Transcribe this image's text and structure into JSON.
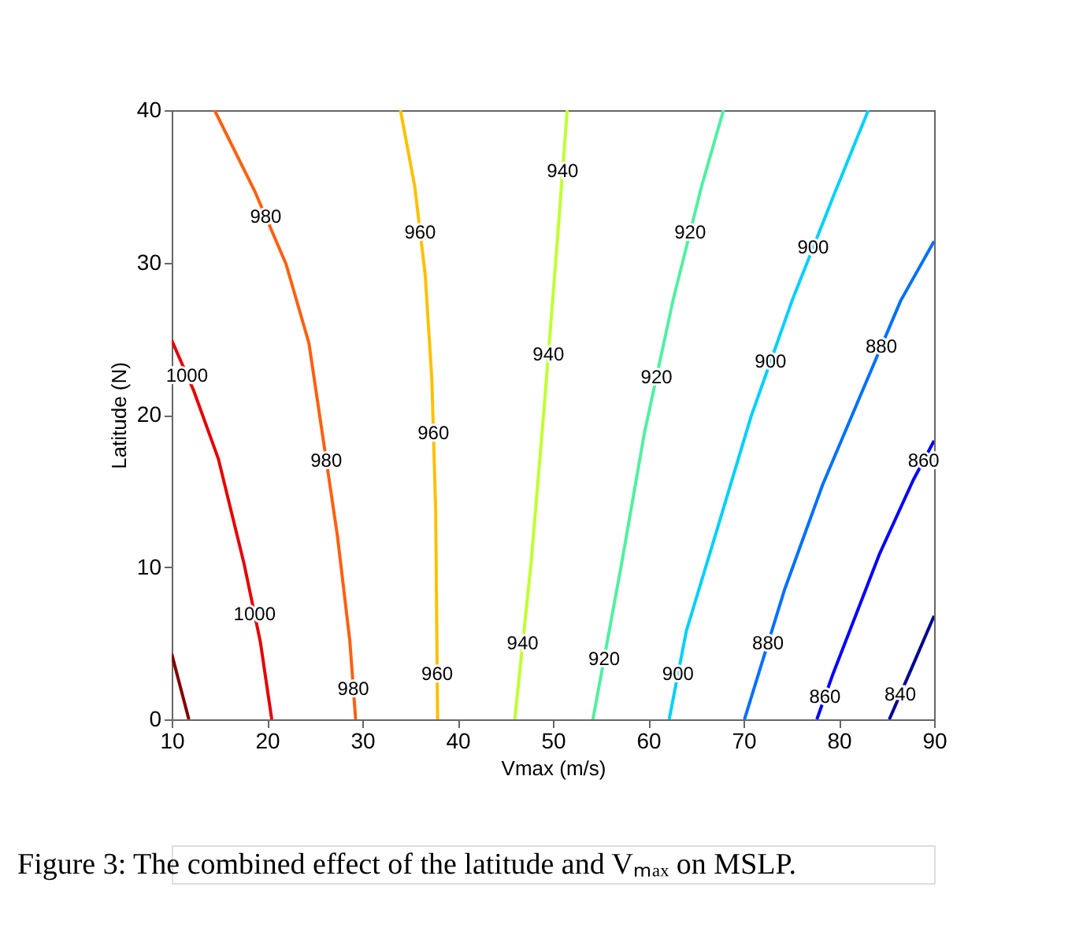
{
  "chart_data": {
    "type": "line",
    "xlabel": "Vmax (m/s)",
    "ylabel": "Latitude (N)",
    "xlim": [
      10,
      90
    ],
    "ylim": [
      0,
      40
    ],
    "xticks": [
      10,
      20,
      30,
      40,
      50,
      60,
      70,
      80,
      90
    ],
    "yticks": [
      0,
      10,
      20,
      30,
      40
    ],
    "grid": false,
    "marker": "none",
    "line_style": "solid",
    "series": [
      {
        "color": "#800000",
        "x": [
          10,
          11.8
        ],
        "values": [
          4.3,
          0
        ]
      },
      {
        "color": "#e60000",
        "x": [
          10,
          12.3,
          14.9,
          17.6,
          19.3,
          20.5
        ],
        "values": [
          24.9,
          21.6,
          17.1,
          10.2,
          5.1,
          0
        ]
      },
      {
        "color": "#ff6010",
        "x": [
          14.5,
          18.7,
          22,
          24.4,
          25.8,
          27.4,
          28.7,
          29.3
        ],
        "values": [
          40,
          34.7,
          29.9,
          24.7,
          18.8,
          12,
          5.1,
          0
        ]
      },
      {
        "color": "#ffc000",
        "x": [
          34.0,
          35.5,
          36.6,
          37.3,
          37.7,
          37.9
        ],
        "values": [
          40,
          35,
          29.2,
          22.3,
          13.7,
          0
        ]
      },
      {
        "color": "#c0ff30",
        "x": [
          51.5,
          50.4,
          49.1,
          47.7,
          46.0
        ],
        "values": [
          40,
          30.9,
          20.6,
          10.2,
          0
        ]
      },
      {
        "color": "#50f0a0",
        "x": [
          67.9,
          65.6,
          62.6,
          59.6,
          57.2,
          54.2
        ],
        "values": [
          40,
          35,
          27.5,
          18.8,
          10.2,
          0
        ]
      },
      {
        "color": "#00d0ff",
        "x": [
          83.1,
          79.4,
          75.1,
          70.8,
          67.0,
          64.0,
          62.2
        ],
        "values": [
          40,
          34.3,
          27.5,
          19.9,
          12,
          5.8,
          0
        ]
      },
      {
        "color": "#0070ff",
        "x": [
          90,
          86.5,
          82.7,
          78.3,
          74.3,
          70.1
        ],
        "values": [
          31.4,
          27.5,
          21.9,
          15.4,
          8.5,
          0
        ]
      },
      {
        "color": "#0000ff",
        "x": [
          90,
          87.8,
          84.3,
          79.4,
          77.7
        ],
        "values": [
          18.3,
          15.7,
          10.9,
          3.0,
          0
        ]
      },
      {
        "color": "#000090",
        "x": [
          90,
          87.6,
          85.3
        ],
        "values": [
          6.8,
          3.3,
          0
        ]
      }
    ],
    "annotations": [
      {
        "text": "1000",
        "x": 11.6,
        "y": 22.6
      },
      {
        "text": "1000",
        "x": 18.7,
        "y": 6.9
      },
      {
        "text": "980",
        "x": 19.87,
        "y": 33
      },
      {
        "text": "980",
        "x": 26.22,
        "y": 17
      },
      {
        "text": "980",
        "x": 29.06,
        "y": 2
      },
      {
        "text": "960",
        "x": 36.07,
        "y": 32
      },
      {
        "text": "960",
        "x": 37.46,
        "y": 18.8
      },
      {
        "text": "960",
        "x": 37.86,
        "y": 3
      },
      {
        "text": "940",
        "x": 51.02,
        "y": 36
      },
      {
        "text": "940",
        "x": 49.53,
        "y": 24
      },
      {
        "text": "940",
        "x": 46.83,
        "y": 5
      },
      {
        "text": "920",
        "x": 64.4,
        "y": 32
      },
      {
        "text": "920",
        "x": 60.88,
        "y": 22.5
      },
      {
        "text": "920",
        "x": 55.38,
        "y": 4
      },
      {
        "text": "900",
        "x": 77.31,
        "y": 31
      },
      {
        "text": "900",
        "x": 72.84,
        "y": 23.5
      },
      {
        "text": "900",
        "x": 63.13,
        "y": 3
      },
      {
        "text": "880",
        "x": 84.46,
        "y": 24.5
      },
      {
        "text": "880",
        "x": 72.57,
        "y": 5
      },
      {
        "text": "860",
        "x": 88.9,
        "y": 17
      },
      {
        "text": "860",
        "x": 78.55,
        "y": 1.5
      },
      {
        "text": "840",
        "x": 86.45,
        "y": 1.65
      },
      "Figure 3: The combined effect of the latitude and Vₘₐₓ on MSLP."
    ]
  }
}
